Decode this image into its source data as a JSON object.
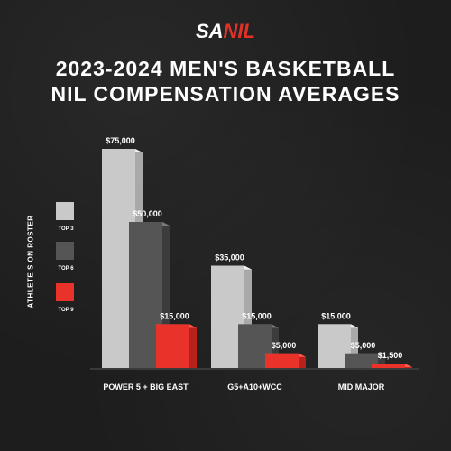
{
  "brand": {
    "part1": "SA",
    "part2": "NIL"
  },
  "title_line1": "2023-2024 MEN'S BASKETBALL",
  "title_line2": "NIL COMPENSATION AVERAGES",
  "colors": {
    "top3": "#c9c9c9",
    "top6": "#555555",
    "top9": "#e8322a",
    "accent": "#e23228"
  },
  "chart_data": {
    "type": "bar",
    "ylabel": "ATHLETE S ON ROSTER",
    "categories": [
      "POWER 5 + BIG EAST",
      "G5+A10+WCC",
      "MID MAJOR"
    ],
    "series": [
      {
        "name": "TOP 3",
        "values": [
          75000,
          35000,
          15000
        ],
        "labels": [
          "$75,000",
          "$35,000",
          "$15,000"
        ]
      },
      {
        "name": "TOP 6",
        "values": [
          50000,
          15000,
          5000
        ],
        "labels": [
          "$50,000",
          "$15,000",
          "$5,000"
        ]
      },
      {
        "name": "TOP 9",
        "values": [
          15000,
          5000,
          1500
        ],
        "labels": [
          "$15,000",
          "$5,000",
          "$1,500"
        ]
      }
    ],
    "ylim": [
      0,
      75000
    ],
    "grid": false,
    "legend": "left"
  }
}
